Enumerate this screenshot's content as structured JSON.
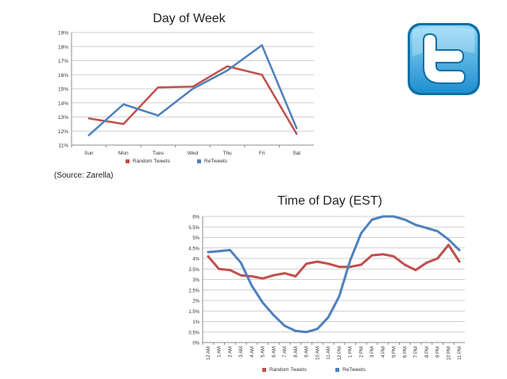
{
  "source_note": "(Source: Zarella)",
  "logo": {
    "icon": "twitter-bird-icon",
    "color_light": "#8fd6f5",
    "color_dark": "#1f8fcf"
  },
  "chart_data": [
    {
      "type": "line",
      "title": "Day of Week",
      "categories": [
        "Sun",
        "Mon",
        "Tues",
        "Wed",
        "Thu",
        "Fri",
        "Sat"
      ],
      "y_ticks": [
        "11%",
        "12%",
        "13%",
        "14%",
        "15%",
        "16%",
        "17%",
        "18%",
        "19%"
      ],
      "ylim": [
        11,
        19
      ],
      "grid": true,
      "legend_position": "bottom",
      "series": [
        {
          "name": "Random Tweets",
          "color": "#c0504d",
          "values": [
            12.9,
            12.5,
            15.1,
            15.15,
            16.6,
            16.0,
            11.8
          ]
        },
        {
          "name": "ReTweets",
          "color": "#4f81bd",
          "values": [
            11.7,
            13.9,
            13.1,
            15.0,
            16.3,
            18.1,
            12.2
          ]
        }
      ]
    },
    {
      "type": "line",
      "title": "Time of Day (EST)",
      "categories": [
        "12 AM",
        "1 AM",
        "2 AM",
        "3 AM",
        "4 AM",
        "5 AM",
        "6 AM",
        "7 AM",
        "8 AM",
        "9 AM",
        "10 AM",
        "11 AM",
        "12 PM",
        "1 PM",
        "2 PM",
        "3 PM",
        "4 PM",
        "5 PM",
        "6 PM",
        "7 PM",
        "8 PM",
        "9 PM",
        "10 PM",
        "11 PM"
      ],
      "y_ticks": [
        "0%",
        "0.5%",
        "1%",
        "1.5%",
        "2%",
        "2.5%",
        "3%",
        "3.5%",
        "4%",
        "4.5%",
        "5%",
        "5.5%",
        "6%"
      ],
      "ylim": [
        0,
        6
      ],
      "grid": true,
      "legend_position": "bottom",
      "series": [
        {
          "name": "Random Tweets",
          "color": "#c0504d",
          "values": [
            4.1,
            3.5,
            3.45,
            3.2,
            3.15,
            3.05,
            3.2,
            3.3,
            3.15,
            3.75,
            3.85,
            3.75,
            3.6,
            3.6,
            3.7,
            4.15,
            4.2,
            4.1,
            3.7,
            3.45,
            3.8,
            4.0,
            4.65,
            3.85
          ]
        },
        {
          "name": "ReTweets",
          "color": "#4f81bd",
          "values": [
            4.3,
            4.35,
            4.4,
            3.8,
            2.7,
            1.9,
            1.3,
            0.8,
            0.55,
            0.5,
            0.65,
            1.2,
            2.2,
            3.9,
            5.2,
            5.85,
            6.0,
            6.0,
            5.85,
            5.6,
            5.45,
            5.3,
            4.9,
            4.4
          ]
        }
      ]
    }
  ]
}
